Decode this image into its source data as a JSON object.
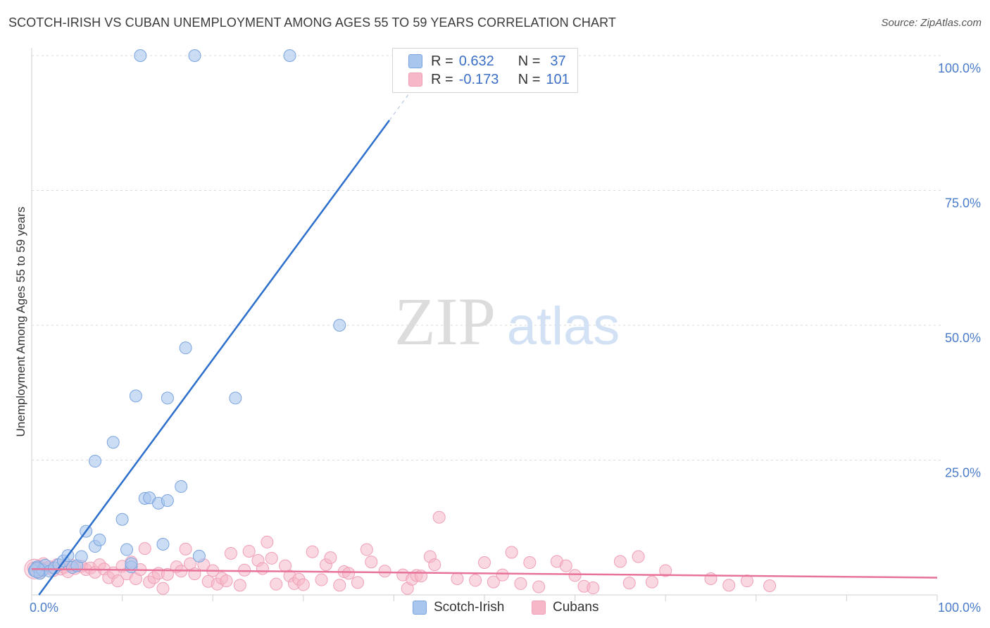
{
  "title": "SCOTCH-IRISH VS CUBAN UNEMPLOYMENT AMONG AGES 55 TO 59 YEARS CORRELATION CHART",
  "source": "Source: ZipAtlas.com",
  "watermark": {
    "zip": "ZIP",
    "atlas": "atlas"
  },
  "legend": {
    "r_label": "R =",
    "n_label": "N =",
    "series": [
      {
        "name": "Scotch-Irish",
        "r": "0.632",
        "n": "37"
      },
      {
        "name": "Cubans",
        "r": "-0.173",
        "n": "101"
      }
    ]
  },
  "colors": {
    "blue_fill": "#a9c6ee",
    "blue_stroke": "#7aa4de",
    "blue_line": "#2c6fcc",
    "pink_fill": "#f6b8c9",
    "pink_stroke": "#ef9fb6",
    "pink_line": "#e8739a",
    "axis_text": "#4a7cc9"
  },
  "chart_data": {
    "type": "scatter",
    "title": "SCOTCH-IRISH VS CUBAN UNEMPLOYMENT AMONG AGES 55 TO 59 YEARS CORRELATION CHART",
    "xlabel": "",
    "ylabel": "Unemployment Among Ages 55 to 59 years",
    "xlim": [
      0,
      100
    ],
    "ylim": [
      0,
      100
    ],
    "x_ticks": [
      "0.0%",
      "100.0%"
    ],
    "y_ticks": [
      {
        "value": 25,
        "label": "25.0%"
      },
      {
        "value": 50,
        "label": "50.0%"
      },
      {
        "value": 75,
        "label": "75.0%"
      },
      {
        "value": 100,
        "label": "100.0%"
      }
    ],
    "series": [
      {
        "name": "Scotch-Irish",
        "r": 0.632,
        "n": 37,
        "trend": {
          "x0": 0.8,
          "y0": 0,
          "x1": 39.5,
          "y1": 88,
          "dash_to_x": 43.5
        },
        "points": [
          [
            0.3,
            4.5
          ],
          [
            0.6,
            5.2
          ],
          [
            0.9,
            4.0
          ],
          [
            1.2,
            4.6
          ],
          [
            1.5,
            5.5
          ],
          [
            2.0,
            4.4
          ],
          [
            2.5,
            5.0
          ],
          [
            3.0,
            5.6
          ],
          [
            3.5,
            6.3
          ],
          [
            4.0,
            7.3
          ],
          [
            4.5,
            5.1
          ],
          [
            5.0,
            5.4
          ],
          [
            5.5,
            7.1
          ],
          [
            6.0,
            11.8
          ],
          [
            7.0,
            9.0
          ],
          [
            7.5,
            10.2
          ],
          [
            7.0,
            24.8
          ],
          [
            9.0,
            28.3
          ],
          [
            10.0,
            14.0
          ],
          [
            10.5,
            8.4
          ],
          [
            11.0,
            5.2
          ],
          [
            11.0,
            5.8
          ],
          [
            11.5,
            36.9
          ],
          [
            12.0,
            100.0
          ],
          [
            12.5,
            17.9
          ],
          [
            13.0,
            18.0
          ],
          [
            14.0,
            17.0
          ],
          [
            14.5,
            9.4
          ],
          [
            15.0,
            36.5
          ],
          [
            15.0,
            17.5
          ],
          [
            16.5,
            20.1
          ],
          [
            17.0,
            45.8
          ],
          [
            18.0,
            100.0
          ],
          [
            18.5,
            7.2
          ],
          [
            22.5,
            36.5
          ],
          [
            28.5,
            100.0
          ],
          [
            34.0,
            50.0
          ]
        ]
      },
      {
        "name": "Cubans",
        "r": -0.173,
        "n": 101,
        "trend": {
          "x0": 0,
          "y0": 4.8,
          "x1": 100,
          "y1": 3.2
        },
        "points": [
          [
            0.2,
            5.0
          ],
          [
            0.5,
            4.6
          ],
          [
            0.8,
            5.3
          ],
          [
            1.0,
            4.2
          ],
          [
            1.3,
            5.8
          ],
          [
            1.6,
            4.9
          ],
          [
            2.0,
            5.2
          ],
          [
            2.4,
            4.5
          ],
          [
            2.8,
            5.6
          ],
          [
            3.2,
            4.8
          ],
          [
            3.6,
            5.1
          ],
          [
            4.0,
            4.3
          ],
          [
            4.4,
            5.5
          ],
          [
            4.8,
            4.9
          ],
          [
            5.5,
            5.3
          ],
          [
            6.0,
            4.7
          ],
          [
            6.5,
            5.0
          ],
          [
            7.0,
            4.2
          ],
          [
            7.5,
            5.6
          ],
          [
            8.0,
            4.8
          ],
          [
            8.5,
            3.2
          ],
          [
            9.0,
            4.1
          ],
          [
            9.5,
            2.6
          ],
          [
            10.0,
            5.3
          ],
          [
            10.5,
            3.9
          ],
          [
            11.0,
            6.1
          ],
          [
            11.5,
            3.0
          ],
          [
            12.0,
            4.7
          ],
          [
            12.5,
            8.6
          ],
          [
            13.0,
            2.4
          ],
          [
            13.5,
            3.2
          ],
          [
            14.0,
            4.0
          ],
          [
            14.5,
            1.2
          ],
          [
            15.0,
            3.8
          ],
          [
            16.0,
            5.2
          ],
          [
            16.5,
            4.4
          ],
          [
            17.0,
            8.5
          ],
          [
            17.5,
            5.8
          ],
          [
            18.0,
            3.9
          ],
          [
            19.0,
            5.6
          ],
          [
            19.5,
            2.5
          ],
          [
            20.0,
            4.5
          ],
          [
            20.5,
            2.0
          ],
          [
            21.0,
            3.1
          ],
          [
            21.5,
            2.6
          ],
          [
            22.0,
            7.7
          ],
          [
            23.0,
            1.8
          ],
          [
            23.5,
            4.6
          ],
          [
            24.0,
            8.1
          ],
          [
            25.0,
            6.4
          ],
          [
            25.5,
            4.9
          ],
          [
            26.0,
            9.8
          ],
          [
            26.5,
            6.8
          ],
          [
            27.0,
            2.0
          ],
          [
            28.0,
            5.4
          ],
          [
            28.5,
            3.5
          ],
          [
            29.0,
            2.1
          ],
          [
            29.5,
            2.9
          ],
          [
            30.0,
            1.9
          ],
          [
            31.0,
            8.0
          ],
          [
            32.0,
            2.8
          ],
          [
            32.5,
            5.6
          ],
          [
            33.0,
            6.9
          ],
          [
            34.0,
            1.8
          ],
          [
            34.5,
            4.3
          ],
          [
            35.0,
            4.0
          ],
          [
            36.0,
            2.3
          ],
          [
            37.0,
            8.4
          ],
          [
            37.5,
            6.1
          ],
          [
            39.0,
            4.4
          ],
          [
            41.0,
            3.7
          ],
          [
            41.5,
            1.2
          ],
          [
            42.0,
            2.9
          ],
          [
            42.5,
            3.6
          ],
          [
            43.0,
            3.5
          ],
          [
            44.0,
            7.1
          ],
          [
            44.5,
            5.6
          ],
          [
            45.0,
            14.4
          ],
          [
            47.0,
            3.0
          ],
          [
            49.0,
            2.7
          ],
          [
            50.0,
            6.0
          ],
          [
            51.0,
            2.4
          ],
          [
            52.0,
            3.7
          ],
          [
            53.0,
            7.9
          ],
          [
            54.0,
            2.1
          ],
          [
            55.0,
            6.0
          ],
          [
            56.0,
            1.5
          ],
          [
            58.0,
            6.2
          ],
          [
            59.0,
            5.4
          ],
          [
            60.0,
            3.6
          ],
          [
            61.0,
            1.6
          ],
          [
            62.0,
            1.3
          ],
          [
            65.0,
            6.2
          ],
          [
            66.0,
            2.2
          ],
          [
            67.0,
            7.1
          ],
          [
            68.5,
            2.4
          ],
          [
            70.0,
            4.5
          ],
          [
            75.0,
            3.0
          ],
          [
            77.0,
            1.8
          ],
          [
            79.0,
            2.6
          ],
          [
            81.5,
            1.7
          ]
        ]
      }
    ]
  },
  "bottom_legend": [
    {
      "name": "Scotch-Irish"
    },
    {
      "name": "Cubans"
    }
  ]
}
